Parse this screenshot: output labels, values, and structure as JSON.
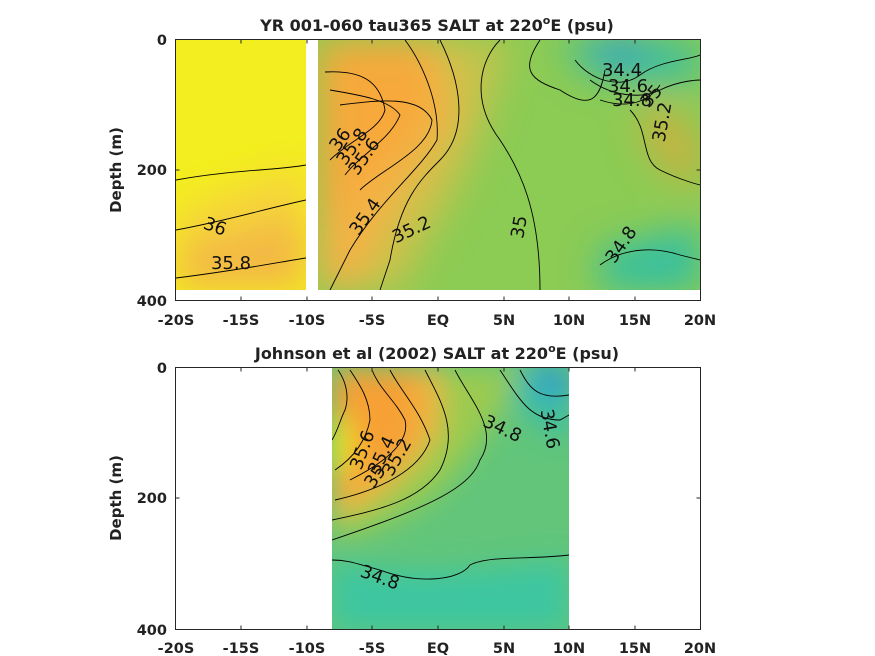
{
  "chart_data": [
    {
      "type": "contour",
      "title_prefix": "YR 001-060 tau365 SALT at 220",
      "title_sup": "o",
      "title_suffix": "E (psu)",
      "ylabel": "Depth (m)",
      "xlim": [
        -20,
        20
      ],
      "ylim": [
        0,
        400
      ],
      "y_reversed": true,
      "xtick_labels": [
        "-20S",
        "-15S",
        "-10S",
        "-5S",
        "EQ",
        "5N",
        "10N",
        "15N",
        "20N"
      ],
      "ytick_labels": [
        "0",
        "200",
        "400"
      ],
      "contour_labels": [
        "36",
        "35.8",
        "35.6",
        "36",
        "35.8",
        "35.4",
        "35.2",
        "35",
        "34.8",
        "34.4",
        "34.6",
        "34.8",
        "35",
        "35.2"
      ]
    },
    {
      "type": "contour",
      "title_prefix": "Johnson et al (2002) SALT at 220",
      "title_sup": "o",
      "title_suffix": "E (psu)",
      "ylabel": "Depth (m)",
      "xlim": [
        -20,
        20
      ],
      "ylim": [
        0,
        400
      ],
      "y_reversed": true,
      "data_x_range": [
        -8,
        10
      ],
      "xtick_labels": [
        "-20S",
        "-15S",
        "-10S",
        "-5S",
        "EQ",
        "5N",
        "10N",
        "15N",
        "20N"
      ],
      "ytick_labels": [
        "0",
        "200",
        "400"
      ],
      "contour_labels": [
        "35.6",
        "35.4",
        "35.2",
        "35",
        "34.8",
        "34.6",
        "34.8"
      ]
    }
  ]
}
